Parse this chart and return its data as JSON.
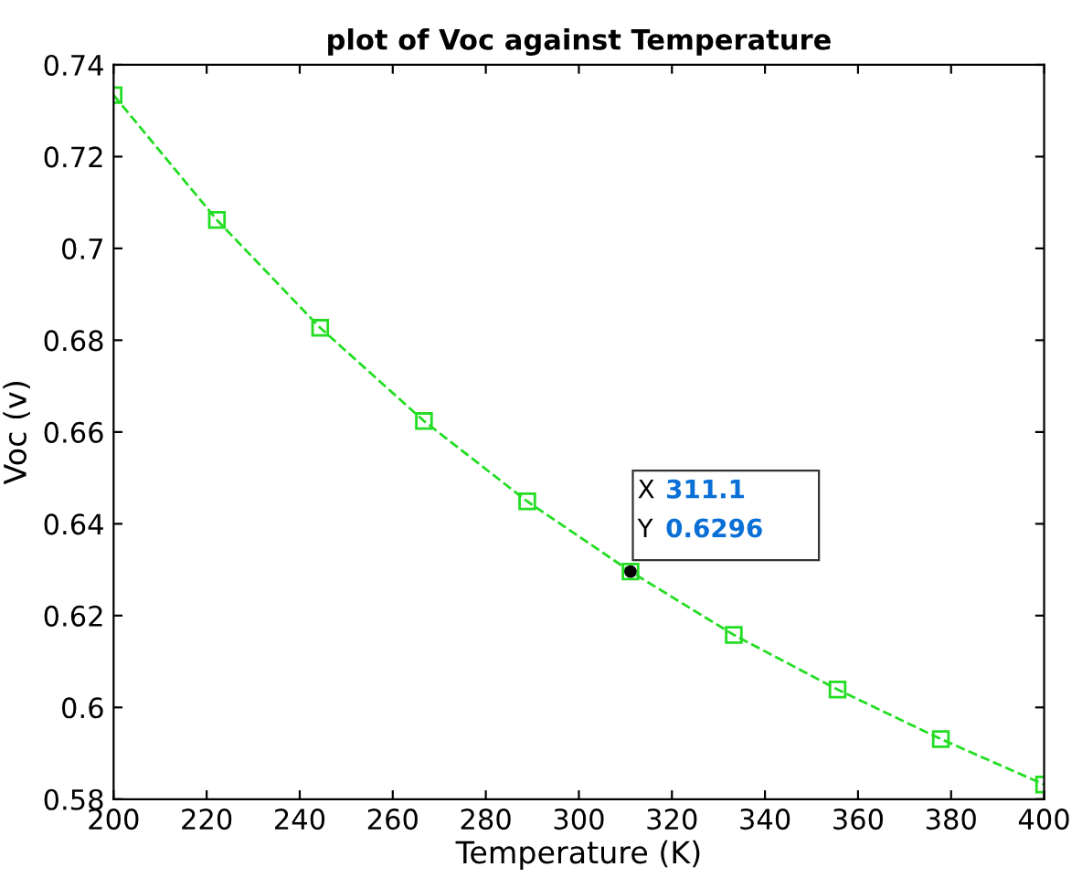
{
  "chart_data": {
    "type": "line",
    "title": "plot of Voc against Temperature",
    "xlabel": "Temperature (K)",
    "ylabel": "Voc (v)",
    "x": [
      200,
      222.2,
      244.4,
      266.7,
      288.9,
      311.1,
      333.3,
      355.6,
      377.8,
      400
    ],
    "series": [
      {
        "color": "#22dd22",
        "values": [
          0.7334,
          0.7062,
          0.6827,
          0.6624,
          0.6449,
          0.6296,
          0.6158,
          0.6039,
          0.5931,
          0.5832
        ]
      }
    ],
    "marker": "square",
    "line_style": "dashed",
    "xlim": [
      200,
      400
    ],
    "xticks": [
      200,
      220,
      240,
      260,
      280,
      300,
      320,
      340,
      360,
      380,
      400
    ],
    "ylim": [
      0.58,
      0.74
    ],
    "yticks": [
      {
        "value": 0.58,
        "label": "0.58"
      },
      {
        "value": 0.6,
        "label": "0.6"
      },
      {
        "value": 0.62,
        "label": "0.62"
      },
      {
        "value": 0.64,
        "label": "0.64"
      },
      {
        "value": 0.66,
        "label": "0.66"
      },
      {
        "value": 0.68,
        "label": "0.68"
      },
      {
        "value": 0.7,
        "label": "0.7"
      },
      {
        "value": 0.72,
        "label": "0.72"
      },
      {
        "value": 0.74,
        "label": "0.74"
      }
    ],
    "grid": false,
    "annotations": [
      {
        "text": "X 311.1\nY 0.6296",
        "x": 311.1,
        "y": 0.6296
      }
    ]
  }
}
